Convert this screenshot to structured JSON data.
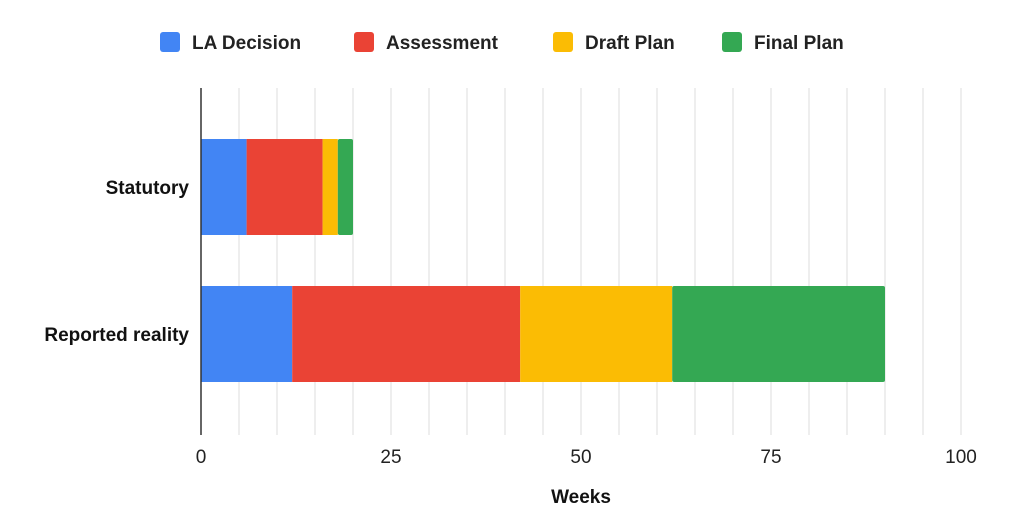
{
  "chart_data": {
    "type": "bar",
    "orientation": "horizontal",
    "stacked": true,
    "categories": [
      "Statutory",
      "Reported reality"
    ],
    "series": [
      {
        "name": "LA Decision",
        "values": [
          6,
          12
        ],
        "color": "#4285F4"
      },
      {
        "name": "Assessment",
        "values": [
          10,
          30
        ],
        "color": "#EA4335"
      },
      {
        "name": "Draft Plan",
        "values": [
          2,
          20
        ],
        "color": "#FBBC04"
      },
      {
        "name": "Final Plan",
        "values": [
          2,
          28
        ],
        "color": "#34A853"
      }
    ],
    "xlabel": "Weeks",
    "xlim": [
      0,
      100
    ],
    "xticks": [
      "0",
      "25",
      "50",
      "75",
      "100"
    ],
    "grid": "vertical",
    "legend_position": "top"
  }
}
